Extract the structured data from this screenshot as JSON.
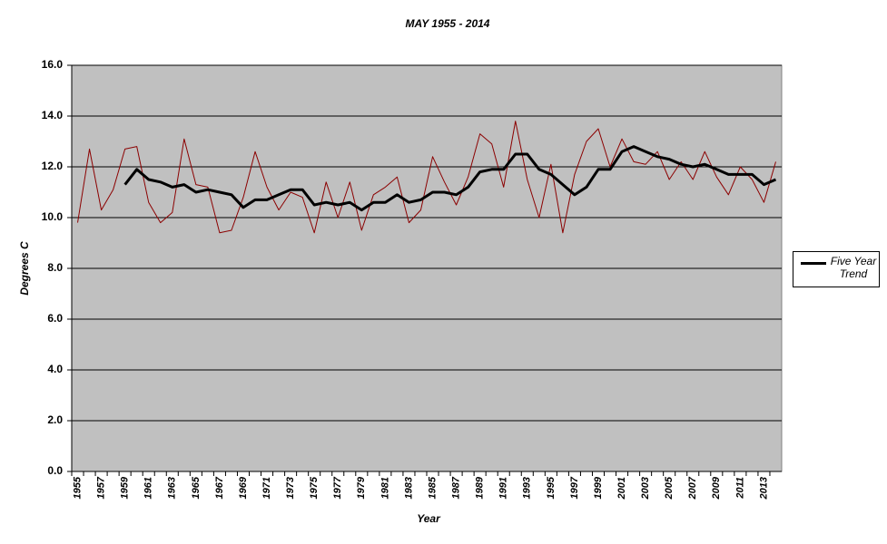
{
  "chart_data": {
    "type": "line",
    "title": "MAY 1955 - 2014",
    "x_label": "Year",
    "y_label": "Degrees C",
    "categories": [
      "1955",
      null,
      "1957",
      null,
      "1959",
      null,
      "1961",
      null,
      "1963",
      null,
      "1965",
      null,
      "1967",
      null,
      "1969",
      null,
      "1971",
      null,
      "1973",
      null,
      "1975",
      null,
      "1977",
      null,
      "1979",
      null,
      "1981",
      null,
      "1983",
      null,
      "1985",
      null,
      "1987",
      null,
      "1989",
      null,
      "1991",
      null,
      "1993",
      null,
      "1995",
      null,
      "1997",
      null,
      "1999",
      null,
      "2001",
      null,
      "2003",
      null,
      "2005",
      null,
      "2007",
      null,
      "2009",
      null,
      "2011",
      null,
      "2013",
      null
    ],
    "series": [
      {
        "color": "#8b0000",
        "width": 1,
        "values": [
          9.8,
          12.7,
          10.3,
          11.1,
          12.7,
          12.8,
          10.6,
          9.8,
          10.2,
          13.1,
          11.3,
          11.2,
          9.4,
          9.5,
          10.8,
          12.6,
          11.2,
          10.3,
          11.0,
          10.8,
          9.4,
          11.4,
          10.0,
          11.4,
          9.5,
          10.9,
          11.2,
          11.6,
          9.8,
          10.3,
          12.4,
          11.4,
          10.5,
          11.6,
          13.3,
          12.9,
          11.2,
          13.8,
          11.5,
          10.0,
          12.1,
          9.4,
          11.7,
          13.0,
          13.5,
          12.0,
          13.1,
          12.2,
          12.1,
          12.6,
          11.5,
          12.2,
          11.5,
          12.6,
          11.6,
          10.9,
          12.0,
          11.5,
          10.6,
          12.2
        ]
      },
      {
        "name": "Five Year Trend",
        "color": "#000000",
        "width": 3,
        "values": [
          null,
          null,
          null,
          null,
          11.3,
          11.9,
          11.5,
          11.4,
          11.2,
          11.3,
          11.0,
          11.1,
          11.0,
          10.9,
          10.4,
          10.7,
          10.7,
          10.9,
          11.1,
          11.1,
          10.5,
          10.6,
          10.5,
          10.6,
          10.3,
          10.6,
          10.6,
          10.9,
          10.6,
          10.7,
          11.0,
          11.0,
          10.9,
          11.2,
          11.8,
          11.9,
          11.9,
          12.5,
          12.5,
          11.9,
          11.7,
          11.3,
          10.9,
          11.2,
          11.9,
          11.9,
          12.6,
          12.8,
          12.6,
          12.4,
          12.3,
          12.1,
          12.0,
          12.1,
          11.9,
          11.7,
          11.7,
          11.7,
          11.3,
          11.5
        ]
      }
    ],
    "ylim": [
      0,
      16
    ],
    "yticks": [
      {
        "value": 0,
        "label": "0.0"
      },
      {
        "value": 2,
        "label": "2.0"
      },
      {
        "value": 4,
        "label": "4.0"
      },
      {
        "value": 6,
        "label": "6.0"
      },
      {
        "value": 8,
        "label": "8.0"
      },
      {
        "value": 10,
        "label": "10.0"
      },
      {
        "value": 12,
        "label": "12.0"
      },
      {
        "value": 14,
        "label": "14.0"
      },
      {
        "value": 16,
        "label": "16.0"
      }
    ],
    "grid": true,
    "legend": "right",
    "plot_color": "#c0c0c0"
  }
}
